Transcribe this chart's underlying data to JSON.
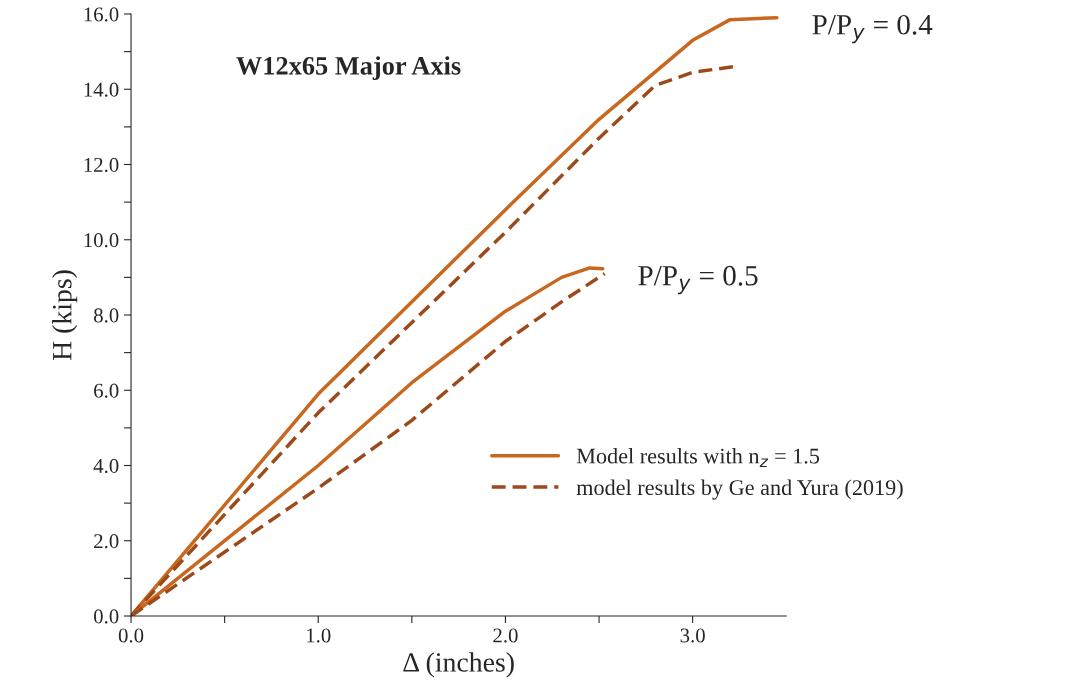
{
  "chart_data": {
    "type": "line",
    "title": "W12x65 Major Axis",
    "xlabel": "Δ (inches)",
    "ylabel": "H (kips)",
    "xlim": [
      0,
      3.5
    ],
    "ylim": [
      0,
      16
    ],
    "xticks": [
      {
        "value": 0,
        "label": "0.0"
      },
      {
        "value": 0.5,
        "label": null
      },
      {
        "value": 1,
        "label": "1.0"
      },
      {
        "value": 1.5,
        "label": null
      },
      {
        "value": 2,
        "label": "2.0"
      },
      {
        "value": 2.5,
        "label": null
      },
      {
        "value": 3,
        "label": "3.0"
      }
    ],
    "yticks": [
      {
        "value": 0,
        "label": "0.0"
      },
      {
        "value": 1,
        "label": null
      },
      {
        "value": 2,
        "label": "2.0"
      },
      {
        "value": 3,
        "label": null
      },
      {
        "value": 4,
        "label": "4.0"
      },
      {
        "value": 5,
        "label": null
      },
      {
        "value": 6,
        "label": "6.0"
      },
      {
        "value": 7,
        "label": null
      },
      {
        "value": 8,
        "label": "8.0"
      },
      {
        "value": 9,
        "label": null
      },
      {
        "value": 10,
        "label": "10.0"
      },
      {
        "value": 11,
        "label": null
      },
      {
        "value": 12,
        "label": "12.0"
      },
      {
        "value": 13,
        "label": null
      },
      {
        "value": 14,
        "label": "14.0"
      },
      {
        "value": 15,
        "label": null
      },
      {
        "value": 16,
        "label": "16.0"
      }
    ],
    "grid": false,
    "legend": "bottom right",
    "marker": "none",
    "series": [
      {
        "name": "Model results with n$_{z}$ = 1.5",
        "color": "#c8671f",
        "line_style": "solid",
        "x": [
          0,
          1.0,
          2.0,
          2.5,
          3.0,
          3.2,
          3.45
        ],
        "values": [
          0,
          5.9,
          10.8,
          13.2,
          15.3,
          15.85,
          15.9
        ]
      },
      {
        "name": "model results by Ge and Yura (2019)",
        "color": "#9c4a1a",
        "line_style": "dashed",
        "x": [
          0,
          1.0,
          2.0,
          2.5,
          2.8,
          3.0,
          3.22
        ],
        "values": [
          0,
          5.4,
          10.2,
          12.7,
          14.1,
          14.45,
          14.6
        ]
      },
      {
        "color": "#c8671f",
        "line_style": "solid",
        "x": [
          0,
          1.0,
          1.5,
          2.0,
          2.3,
          2.45,
          2.52
        ],
        "values": [
          0,
          4.0,
          6.2,
          8.1,
          9.0,
          9.25,
          9.23
        ]
      },
      {
        "color": "#9c4a1a",
        "line_style": "dashed",
        "x": [
          0,
          1.0,
          1.5,
          2.0,
          2.3,
          2.53
        ],
        "values": [
          0,
          3.4,
          5.2,
          7.3,
          8.35,
          9.1
        ]
      }
    ],
    "annotations": [
      {
        "text": "P/P$_{y}$ = 0.4",
        "x": 3.45,
        "y": 15.9
      },
      {
        "text": "P/P$_{y}$ = 0.5",
        "x": 2.52,
        "y": 9.23
      }
    ]
  }
}
